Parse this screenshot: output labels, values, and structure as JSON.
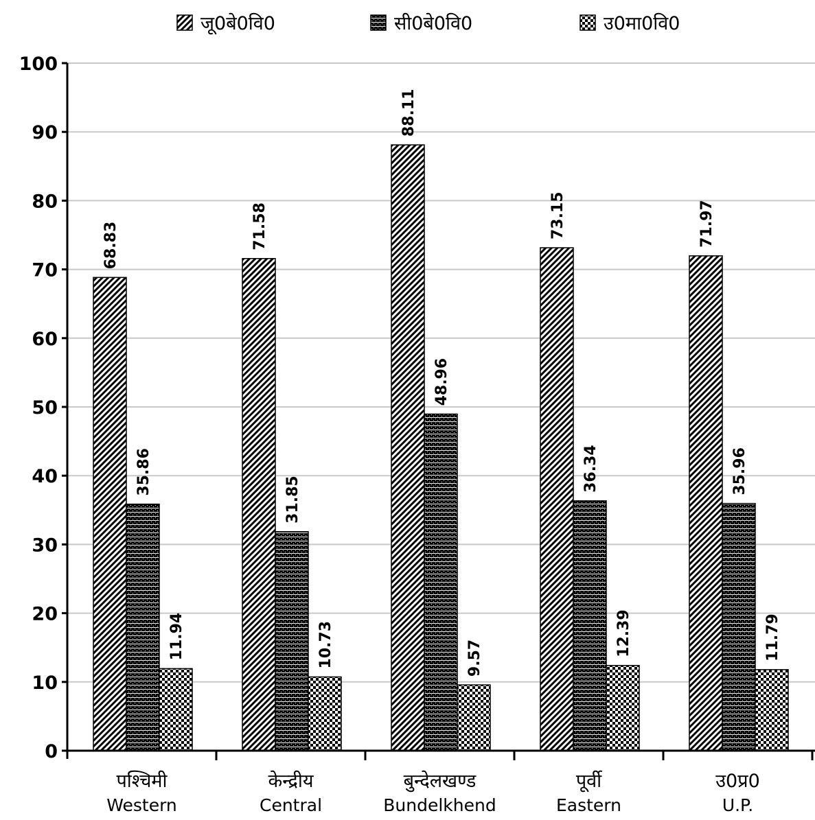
{
  "chart_data": {
    "type": "bar",
    "title": "",
    "xlabel": "",
    "ylabel": "",
    "ylim": [
      0,
      100
    ],
    "yticks": [
      0,
      10,
      20,
      30,
      40,
      50,
      60,
      70,
      80,
      90,
      100
    ],
    "grid": true,
    "legend_position": "top",
    "categories": [
      {
        "hindi": "पश्चिमी",
        "english": "Western"
      },
      {
        "hindi": "केन्द्रीय",
        "english": "Central"
      },
      {
        "hindi": "बुन्देलखण्ड",
        "english": "Bundelkhend"
      },
      {
        "hindi": "पूर्वी",
        "english": "Eastern"
      },
      {
        "hindi": "उ0प्र0",
        "english": "U.P."
      }
    ],
    "series": [
      {
        "name": "जू0बे0वि0",
        "pattern": "diagonal-hatch",
        "values": [
          68.83,
          71.58,
          88.11,
          73.15,
          71.97
        ]
      },
      {
        "name": "सी0बे0वि0",
        "pattern": "dense-dark",
        "values": [
          35.86,
          31.85,
          48.96,
          36.34,
          35.96
        ]
      },
      {
        "name": "उ0मा0वि0",
        "pattern": "checkerboard",
        "values": [
          11.94,
          10.73,
          9.57,
          12.39,
          11.79
        ]
      }
    ],
    "data_labels": [
      [
        "68.83",
        "71.58",
        "88.11",
        "73.15",
        "71.97"
      ],
      [
        "35.86",
        "31.85",
        "48.96",
        "36.34",
        "35.96"
      ],
      [
        "11.94",
        "10.73",
        "9.57",
        "12.39",
        "11.79"
      ]
    ],
    "colors": {
      "gridline": "#c8c8c8",
      "axis": "#000000",
      "bar_outline": "#000000"
    }
  }
}
